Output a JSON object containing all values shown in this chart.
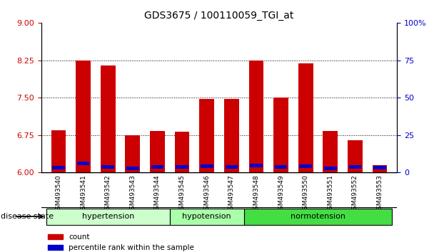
{
  "title": "GDS3675 / 100110059_TGI_at",
  "samples": [
    "GSM493540",
    "GSM493541",
    "GSM493542",
    "GSM493543",
    "GSM493544",
    "GSM493545",
    "GSM493546",
    "GSM493547",
    "GSM493548",
    "GSM493549",
    "GSM493550",
    "GSM493551",
    "GSM493552",
    "GSM493553"
  ],
  "red_values": [
    6.85,
    8.25,
    8.15,
    6.75,
    6.83,
    6.82,
    7.47,
    7.47,
    8.25,
    7.5,
    8.18,
    6.83,
    6.65,
    6.15
  ],
  "blue_values": [
    6.1,
    6.18,
    6.12,
    6.09,
    6.11,
    6.12,
    6.13,
    6.12,
    6.14,
    6.12,
    6.13,
    6.09,
    6.12,
    6.1
  ],
  "ylim_left": [
    6,
    9
  ],
  "ylim_right": [
    0,
    100
  ],
  "yticks_left": [
    6,
    6.75,
    7.5,
    8.25,
    9
  ],
  "yticks_right": [
    0,
    25,
    50,
    75,
    100
  ],
  "groups": [
    {
      "label": "hypertension",
      "start": 0,
      "end": 5,
      "color": "#ccffcc"
    },
    {
      "label": "hypotension",
      "start": 5,
      "end": 8,
      "color": "#aaffaa"
    },
    {
      "label": "normotension",
      "start": 8,
      "end": 14,
      "color": "#44dd44"
    }
  ],
  "disease_state_label": "disease state",
  "legend_red": "count",
  "legend_blue": "percentile rank within the sample",
  "bar_width": 0.6,
  "base": 6,
  "bar_color_red": "#cc0000",
  "bar_color_blue": "#0000cc",
  "tick_color_left": "#cc0000",
  "tick_color_right": "#0000cc"
}
